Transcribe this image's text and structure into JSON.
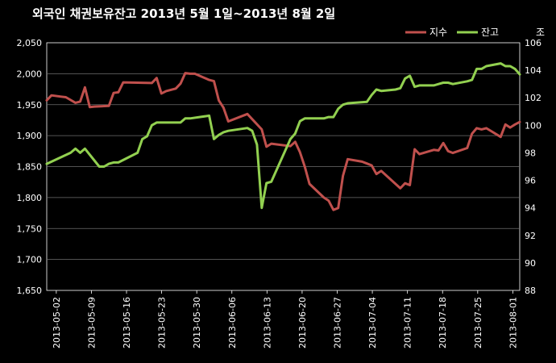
{
  "chart_data": {
    "type": "line",
    "title": "외국인 채권보유잔고  2013년 5월 1일~2013년 8월 2일",
    "y_left_range": [
      1650,
      2050
    ],
    "y_left_ticks": [
      "1,650",
      "1,700",
      "1,750",
      "1,800",
      "1,850",
      "1,900",
      "1,950",
      "2,000",
      "2,050"
    ],
    "y_right_range": [
      88,
      106
    ],
    "y_right_ticks": [
      "88",
      "90",
      "92",
      "94",
      "96",
      "98",
      "100",
      "102",
      "104",
      "106"
    ],
    "y_right_unit": "조",
    "x_tick_labels": [
      "2013-05-02",
      "2013-05-09",
      "2013-05-16",
      "2013-05-23",
      "2013-05-30",
      "2013-06-06",
      "2013-06-13",
      "2013-06-20",
      "2013-06-27",
      "2013-07-04",
      "2013-07-11",
      "2013-07-18",
      "2013-07-25",
      "2013-08-01"
    ],
    "legend_position": "top-right",
    "grid": true,
    "series": [
      {
        "name": "지수",
        "axis": "left",
        "color": "#c0504d",
        "points": [
          [
            0,
            1957
          ],
          [
            1,
            1965
          ],
          [
            3,
            1963
          ],
          [
            4,
            1962
          ],
          [
            6,
            1953
          ],
          [
            7,
            1955
          ],
          [
            8,
            1978
          ],
          [
            9,
            1946
          ],
          [
            10,
            1947
          ],
          [
            13,
            1948
          ],
          [
            14,
            1969
          ],
          [
            15,
            1970
          ],
          [
            16,
            1986
          ],
          [
            22,
            1985
          ],
          [
            23,
            1993
          ],
          [
            24,
            1968
          ],
          [
            25,
            1972
          ],
          [
            27,
            1976
          ],
          [
            28,
            1984
          ],
          [
            29,
            2001
          ],
          [
            30,
            2000
          ],
          [
            31,
            2000
          ],
          [
            34,
            1990
          ],
          [
            35,
            1988
          ],
          [
            36,
            1957
          ],
          [
            37,
            1945
          ],
          [
            38,
            1923
          ],
          [
            42,
            1935
          ],
          [
            45,
            1910
          ],
          [
            46,
            1882
          ],
          [
            47,
            1887
          ],
          [
            51,
            1883
          ],
          [
            52,
            1890
          ],
          [
            53,
            1873
          ],
          [
            54,
            1850
          ],
          [
            55,
            1822
          ],
          [
            58,
            1800
          ],
          [
            59,
            1795
          ],
          [
            60,
            1780
          ],
          [
            61,
            1783
          ],
          [
            62,
            1835
          ],
          [
            63,
            1862
          ],
          [
            66,
            1858
          ],
          [
            67,
            1855
          ],
          [
            68,
            1852
          ],
          [
            69,
            1838
          ],
          [
            70,
            1843
          ],
          [
            74,
            1815
          ],
          [
            75,
            1823
          ],
          [
            76,
            1820
          ],
          [
            77,
            1878
          ],
          [
            78,
            1870
          ],
          [
            81,
            1877
          ],
          [
            82,
            1876
          ],
          [
            83,
            1888
          ],
          [
            84,
            1875
          ],
          [
            85,
            1872
          ],
          [
            88,
            1880
          ],
          [
            89,
            1903
          ],
          [
            90,
            1912
          ],
          [
            91,
            1910
          ],
          [
            92,
            1912
          ],
          [
            95,
            1898
          ],
          [
            96,
            1918
          ],
          [
            97,
            1913
          ],
          [
            98,
            1918
          ],
          [
            99,
            1922
          ]
        ]
      },
      {
        "name": "잔고",
        "axis": "right",
        "color": "#92d050",
        "points": [
          [
            0,
            97.2
          ],
          [
            5,
            98.0
          ],
          [
            6,
            98.3
          ],
          [
            7,
            98.0
          ],
          [
            8,
            98.3
          ],
          [
            11,
            97.0
          ],
          [
            12,
            97.0
          ],
          [
            13,
            97.2
          ],
          [
            14,
            97.3
          ],
          [
            15,
            97.3
          ],
          [
            19,
            98.0
          ],
          [
            20,
            99.0
          ],
          [
            21,
            99.2
          ],
          [
            22,
            100.0
          ],
          [
            23,
            100.2
          ],
          [
            28,
            100.2
          ],
          [
            29,
            100.5
          ],
          [
            30,
            100.5
          ],
          [
            34,
            100.7
          ],
          [
            35,
            99.0
          ],
          [
            36,
            99.3
          ],
          [
            37,
            99.5
          ],
          [
            38,
            99.6
          ],
          [
            42,
            99.8
          ],
          [
            43,
            99.6
          ],
          [
            44,
            98.6
          ],
          [
            45,
            94.0
          ],
          [
            46,
            95.8
          ],
          [
            47,
            95.9
          ],
          [
            51,
            99.0
          ],
          [
            52,
            99.4
          ],
          [
            53,
            100.3
          ],
          [
            54,
            100.5
          ],
          [
            58,
            100.5
          ],
          [
            59,
            100.6
          ],
          [
            60,
            100.6
          ],
          [
            61,
            101.2
          ],
          [
            62,
            101.5
          ],
          [
            63,
            101.6
          ],
          [
            67,
            101.7
          ],
          [
            68,
            102.2
          ],
          [
            69,
            102.6
          ],
          [
            70,
            102.5
          ],
          [
            73,
            102.6
          ],
          [
            74,
            102.7
          ],
          [
            75,
            103.4
          ],
          [
            76,
            103.6
          ],
          [
            77,
            102.8
          ],
          [
            78,
            102.9
          ],
          [
            81,
            102.9
          ],
          [
            82,
            103.0
          ],
          [
            83,
            103.1
          ],
          [
            84,
            103.1
          ],
          [
            85,
            103.0
          ],
          [
            88,
            103.2
          ],
          [
            89,
            103.3
          ],
          [
            90,
            104.1
          ],
          [
            91,
            104.1
          ],
          [
            92,
            104.3
          ],
          [
            95,
            104.5
          ],
          [
            96,
            104.3
          ],
          [
            97,
            104.3
          ],
          [
            98,
            104.1
          ],
          [
            99,
            103.7
          ]
        ]
      }
    ]
  }
}
